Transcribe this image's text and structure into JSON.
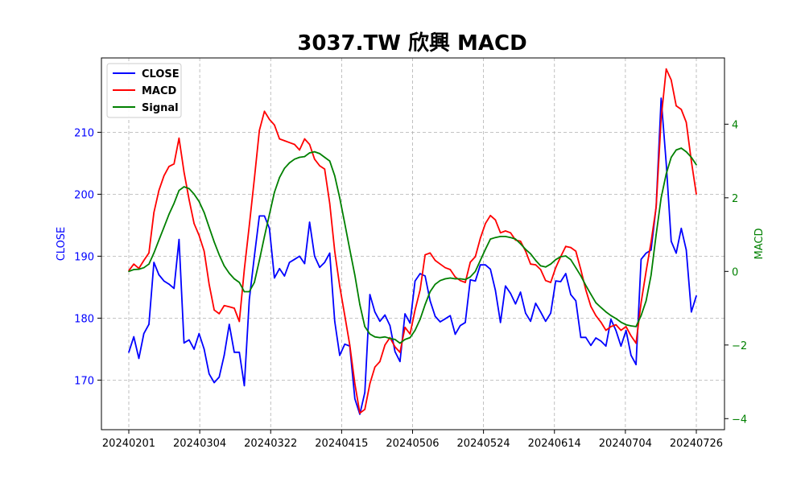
{
  "chart_data": {
    "type": "line",
    "title": "3037.TW 欣興 MACD",
    "xlabel": "",
    "ylabel_left": "CLOSE",
    "ylabel_right": "MACD",
    "x_tick_labels": [
      "20240201",
      "20240304",
      "20240322",
      "20240415",
      "20240506",
      "20240524",
      "20240614",
      "20240704",
      "20240726"
    ],
    "ylim_left": [
      162,
      222
    ],
    "ylim_right": [
      -4.3,
      5.8
    ],
    "yticks_left": [
      170,
      180,
      190,
      200,
      210
    ],
    "yticks_right": [
      -4,
      -2,
      0,
      2,
      4
    ],
    "grid": true,
    "legend_position": "upper-left",
    "colors": {
      "close": "#0000ff",
      "macd": "#ff0000",
      "signal": "#008000"
    },
    "series": [
      {
        "name": "CLOSE",
        "axis": "left",
        "values": [
          174.5,
          177,
          173.5,
          177.5,
          179,
          189,
          187,
          186,
          185.5,
          184.8,
          192.7,
          176,
          176.5,
          175,
          177.5,
          175,
          171,
          169.6,
          170.5,
          174,
          179,
          174.5,
          174.5,
          169.1,
          183,
          190,
          196.5,
          196.5,
          194.5,
          186.5,
          188,
          186.8,
          189,
          189.5,
          190,
          188.8,
          195.5,
          190,
          188.2,
          189,
          190.5,
          179.5,
          174,
          175.8,
          175.5,
          167,
          164.5,
          168,
          183.8,
          181,
          179.5,
          180.5,
          178.8,
          174.6,
          173,
          180.7,
          179.2,
          186,
          187.2,
          186.8,
          182.8,
          180.3,
          179.4,
          179.9,
          180.4,
          177.4,
          178.8,
          179.3,
          186.2,
          186,
          188.6,
          188.6,
          187.9,
          184.5,
          179.3,
          185.2,
          184,
          182.3,
          184.2,
          180.8,
          179.5,
          182.4,
          181,
          179.5,
          180.8,
          186,
          185.9,
          187.2,
          183.8,
          182.8,
          176.9,
          176.9,
          175.6,
          176.8,
          176.3,
          175.5,
          179.8,
          178,
          175.5,
          178,
          174,
          172.5,
          189.5,
          190.5,
          191,
          198,
          215.5,
          205,
          192.4,
          190.5,
          194.5,
          191,
          181,
          183.6
        ]
      },
      {
        "name": "MACD",
        "axis": "right",
        "values": [
          0.02,
          0.2,
          0.08,
          0.3,
          0.5,
          1.6,
          2.2,
          2.6,
          2.85,
          2.92,
          3.62,
          2.7,
          1.95,
          1.3,
          0.98,
          0.55,
          -0.35,
          -1.05,
          -1.15,
          -0.93,
          -0.96,
          -1.0,
          -1.36,
          0.05,
          1.25,
          2.52,
          3.83,
          4.35,
          4.13,
          3.98,
          3.6,
          3.55,
          3.5,
          3.45,
          3.3,
          3.6,
          3.45,
          3.05,
          2.87,
          2.78,
          1.85,
          0.55,
          -0.4,
          -1.2,
          -2.0,
          -3.05,
          -3.85,
          -3.75,
          -3.05,
          -2.6,
          -2.45,
          -2.0,
          -1.8,
          -2.05,
          -2.2,
          -1.52,
          -1.7,
          -1.05,
          -0.5,
          0.45,
          0.5,
          0.3,
          0.2,
          0.1,
          0.05,
          -0.15,
          -0.25,
          -0.3,
          0.25,
          0.4,
          0.9,
          1.3,
          1.52,
          1.4,
          1.05,
          1.1,
          1.05,
          0.85,
          0.82,
          0.55,
          0.2,
          0.18,
          0.05,
          -0.25,
          -0.3,
          0.1,
          0.4,
          0.68,
          0.65,
          0.55,
          0.05,
          -0.5,
          -0.95,
          -1.2,
          -1.38,
          -1.6,
          -1.5,
          -1.45,
          -1.6,
          -1.5,
          -1.75,
          -1.95,
          -0.85,
          0.0,
          0.8,
          1.75,
          4.15,
          5.5,
          5.2,
          4.5,
          4.4,
          4.05,
          3.0,
          2.1
        ]
      },
      {
        "name": "Signal",
        "axis": "right",
        "values": [
          0.0,
          0.05,
          0.06,
          0.1,
          0.2,
          0.5,
          0.85,
          1.2,
          1.55,
          1.85,
          2.2,
          2.3,
          2.25,
          2.1,
          1.9,
          1.6,
          1.2,
          0.8,
          0.45,
          0.15,
          -0.05,
          -0.2,
          -0.3,
          -0.55,
          -0.55,
          -0.3,
          0.3,
          0.95,
          1.55,
          2.15,
          2.55,
          2.8,
          2.95,
          3.05,
          3.1,
          3.12,
          3.22,
          3.25,
          3.2,
          3.1,
          3.0,
          2.6,
          2.0,
          1.3,
          0.6,
          -0.1,
          -0.9,
          -1.5,
          -1.7,
          -1.78,
          -1.8,
          -1.78,
          -1.82,
          -1.85,
          -1.95,
          -1.85,
          -1.8,
          -1.6,
          -1.3,
          -0.9,
          -0.55,
          -0.35,
          -0.25,
          -0.2,
          -0.18,
          -0.2,
          -0.2,
          -0.22,
          -0.15,
          0.0,
          0.3,
          0.6,
          0.88,
          0.92,
          0.95,
          0.95,
          0.92,
          0.88,
          0.75,
          0.6,
          0.48,
          0.3,
          0.15,
          0.12,
          0.2,
          0.32,
          0.4,
          0.42,
          0.32,
          0.1,
          -0.12,
          -0.38,
          -0.62,
          -0.85,
          -0.98,
          -1.1,
          -1.2,
          -1.28,
          -1.38,
          -1.45,
          -1.48,
          -1.5,
          -1.2,
          -0.8,
          -0.1,
          1.0,
          2.0,
          2.65,
          3.1,
          3.3,
          3.35,
          3.25,
          3.1,
          2.9
        ]
      }
    ]
  }
}
